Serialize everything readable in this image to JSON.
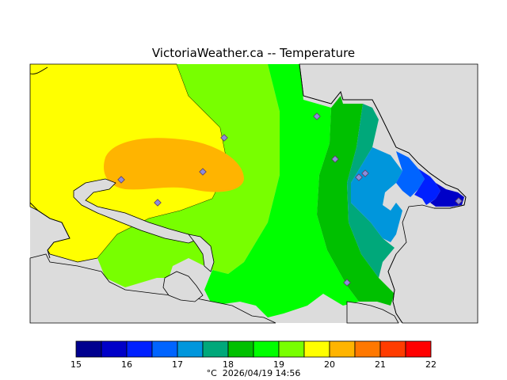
{
  "title": "VictoriaWeather.ca -- Temperature",
  "footer": {
    "unit": "°C",
    "timestamp": "2026/04/19 14:56"
  },
  "legend": {
    "min": 15,
    "max": 22,
    "tick_labels": [
      "15",
      "16",
      "17",
      "18",
      "19",
      "20",
      "21",
      "22"
    ],
    "bins": [
      {
        "from": 15.0,
        "to": 15.5,
        "color": "#00008f"
      },
      {
        "from": 15.5,
        "to": 16.0,
        "color": "#0000c8"
      },
      {
        "from": 16.0,
        "to": 16.5,
        "color": "#0020ff"
      },
      {
        "from": 16.5,
        "to": 17.0,
        "color": "#0064ff"
      },
      {
        "from": 17.0,
        "to": 17.5,
        "color": "#0096dc"
      },
      {
        "from": 17.5,
        "to": 18.0,
        "color": "#00a87a"
      },
      {
        "from": 18.0,
        "to": 18.5,
        "color": "#00c000"
      },
      {
        "from": 18.5,
        "to": 19.0,
        "color": "#00ff00"
      },
      {
        "from": 19.0,
        "to": 19.5,
        "color": "#78ff00"
      },
      {
        "from": 19.5,
        "to": 20.0,
        "color": "#ffff00"
      },
      {
        "from": 20.0,
        "to": 20.5,
        "color": "#ffb400"
      },
      {
        "from": 20.5,
        "to": 21.0,
        "color": "#ff7800"
      },
      {
        "from": 21.0,
        "to": 21.5,
        "color": "#ff3c00"
      },
      {
        "from": 21.5,
        "to": 22.0,
        "color": "#ff0000"
      }
    ]
  },
  "map": {
    "background_color": "#dcdcdc",
    "station_marker_color": "#8c8cdc",
    "station_count": 10
  }
}
